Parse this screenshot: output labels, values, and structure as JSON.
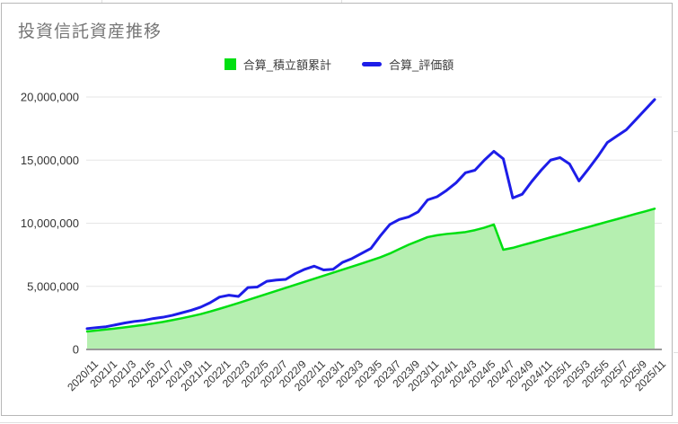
{
  "window": {
    "background": "#ffffff",
    "frame_border_color": "#b7b7b7"
  },
  "chart": {
    "title": "投資信託資産推移",
    "title_color": "#757575",
    "legend": [
      {
        "label": "合算_積立額累計",
        "color": "#00df12",
        "swatch": "square"
      },
      {
        "label": "合算_評価額",
        "color": "#1d1de8",
        "swatch": "line"
      }
    ],
    "chart_data": {
      "type": "area",
      "title": "投資信託資産推移",
      "xlabel": "",
      "ylabel": "",
      "ylim": [
        0,
        20000000
      ],
      "grid": "horizontal-only",
      "legend_position": "top-center",
      "x_tick_step": 2,
      "y_ticks": [
        {
          "value": 0,
          "label": "0"
        },
        {
          "value": 5000000,
          "label": "5,000,000"
        },
        {
          "value": 10000000,
          "label": "10,000,000"
        },
        {
          "value": 15000000,
          "label": "15,000,000"
        },
        {
          "value": 20000000,
          "label": "20,000,000"
        }
      ],
      "x": [
        "2020/11",
        "2020/12",
        "2021/1",
        "2021/2",
        "2021/3",
        "2021/4",
        "2021/5",
        "2021/6",
        "2021/7",
        "2021/8",
        "2021/9",
        "2021/10",
        "2021/11",
        "2021/12",
        "2022/1",
        "2022/2",
        "2022/3",
        "2022/4",
        "2022/5",
        "2022/6",
        "2022/7",
        "2022/8",
        "2022/9",
        "2022/10",
        "2022/11",
        "2022/12",
        "2023/1",
        "2023/2",
        "2023/3",
        "2023/4",
        "2023/5",
        "2023/6",
        "2023/7",
        "2023/8",
        "2023/9",
        "2023/10",
        "2023/11",
        "2023/12",
        "2024/1",
        "2024/2",
        "2024/3",
        "2024/4",
        "2024/5",
        "2024/6",
        "2024/7",
        "2024/8",
        "2024/9",
        "2024/10",
        "2024/11",
        "2024/12",
        "2025/1",
        "2025/2",
        "2025/3",
        "2025/4",
        "2025/5",
        "2025/6",
        "2025/7",
        "2025/8",
        "2025/9",
        "2025/10",
        "2025/11"
      ],
      "series": [
        {
          "name": "合算_積立額累計",
          "type": "area",
          "color": "#00df12",
          "fill": "#b5efb0",
          "values": [
            1420000,
            1500000,
            1580000,
            1660000,
            1750000,
            1850000,
            1950000,
            2060000,
            2180000,
            2320000,
            2470000,
            2630000,
            2800000,
            3000000,
            3220000,
            3450000,
            3680000,
            3920000,
            4160000,
            4400000,
            4640000,
            4880000,
            5120000,
            5360000,
            5600000,
            5840000,
            6080000,
            6320000,
            6560000,
            6800000,
            7050000,
            7300000,
            7600000,
            7950000,
            8300000,
            8600000,
            8900000,
            9050000,
            9150000,
            9220000,
            9300000,
            9450000,
            9650000,
            9900000,
            7900000,
            8050000,
            8260000,
            8460000,
            8670000,
            8880000,
            9080000,
            9290000,
            9500000,
            9700000,
            9910000,
            10120000,
            10320000,
            10530000,
            10740000,
            10940000,
            11150000
          ]
        },
        {
          "name": "合算_評価額",
          "type": "line",
          "color": "#1d1de8",
          "values": [
            1650000,
            1730000,
            1800000,
            1950000,
            2100000,
            2220000,
            2300000,
            2450000,
            2550000,
            2700000,
            2900000,
            3100000,
            3350000,
            3700000,
            4150000,
            4300000,
            4200000,
            4900000,
            4950000,
            5400000,
            5500000,
            5550000,
            6000000,
            6350000,
            6600000,
            6300000,
            6350000,
            6900000,
            7200000,
            7600000,
            8000000,
            9000000,
            9900000,
            10300000,
            10500000,
            10900000,
            11850000,
            12100000,
            12600000,
            13200000,
            14000000,
            14200000,
            15000000,
            15700000,
            15100000,
            12000000,
            12300000,
            13300000,
            14200000,
            15000000,
            15200000,
            14700000,
            13350000,
            14300000,
            15300000,
            16400000,
            16900000,
            17400000,
            18200000,
            19000000,
            19800000
          ]
        }
      ],
      "grid_color": "#e6e6e6",
      "baseline_color": "#999999",
      "tick_label_color": "#333333"
    }
  }
}
